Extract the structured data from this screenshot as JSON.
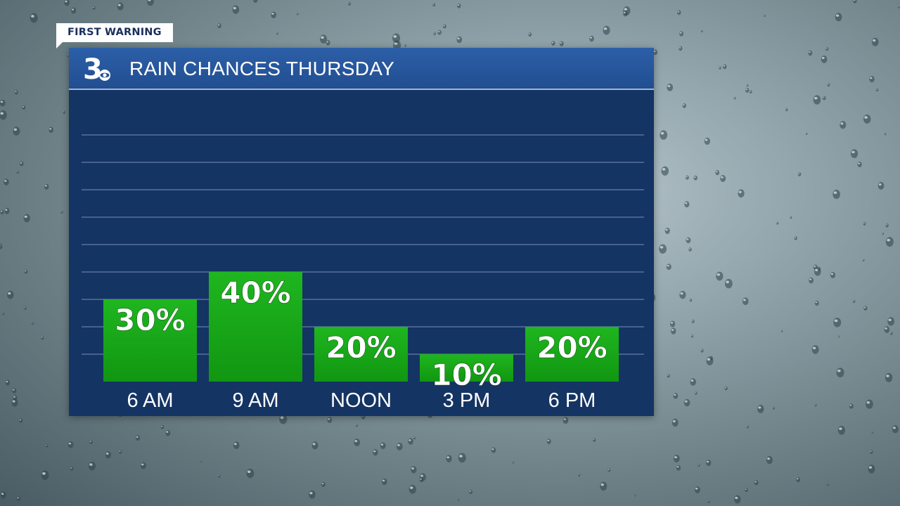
{
  "brand": {
    "tab_label": "FIRST WARNING",
    "logo_icon": "channel-3-logo-icon"
  },
  "colors": {
    "panel": "#143463",
    "header": "#2c5fa8",
    "bar": "#16a216",
    "text": "#ffffff"
  },
  "chart_data": {
    "type": "bar",
    "title": "RAIN CHANCES THURSDAY",
    "categories": [
      "6 AM",
      "9 AM",
      "NOON",
      "3 PM",
      "6 PM"
    ],
    "values": [
      30,
      40,
      20,
      10,
      20
    ],
    "value_labels": [
      "30%",
      "40%",
      "20%",
      "10%",
      "20%"
    ],
    "ylim": [
      0,
      100
    ],
    "grid": true,
    "legend": "none"
  }
}
